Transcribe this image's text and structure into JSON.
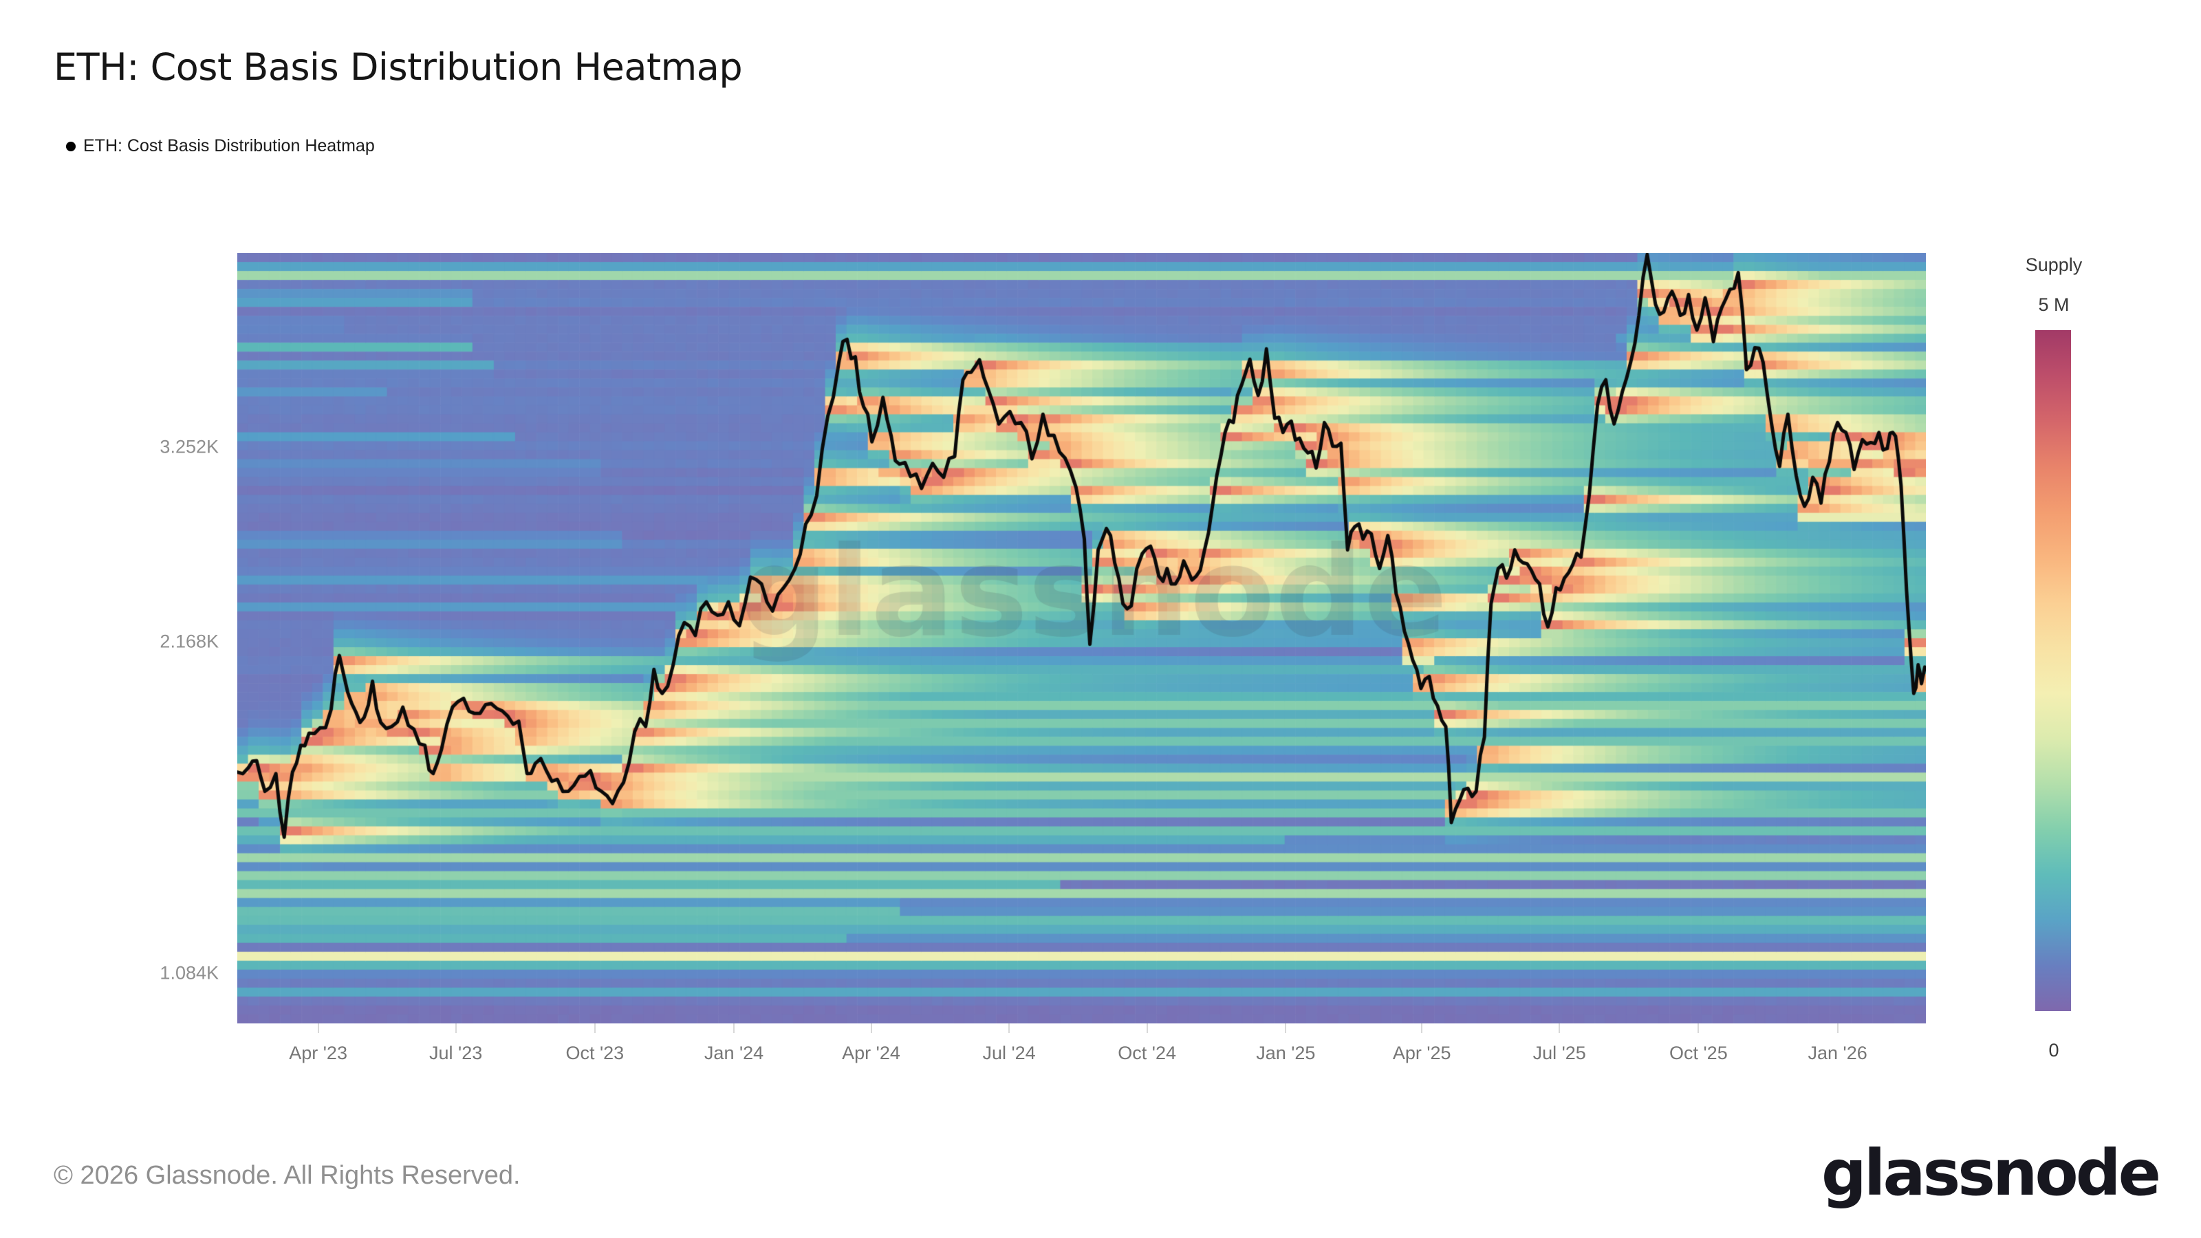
{
  "page": {
    "title": "ETH: Cost Basis Distribution Heatmap",
    "footer": "© 2026 Glassnode. All Rights Reserved.",
    "brand": "glassnode",
    "watermark": "glassnode"
  },
  "legend": {
    "marker": "black-dot",
    "label": "ETH: Cost Basis Distribution Heatmap"
  },
  "chart_data": {
    "type": "heatmap",
    "title": "ETH: Cost Basis Distribution Heatmap",
    "series_name": "ETH: Cost Basis Distribution Heatmap",
    "x_axis": {
      "domain": [
        2023.1,
        2026.16
      ],
      "ticks": [
        {
          "label": "Apr '23",
          "t": 2023.2466
        },
        {
          "label": "Jul '23",
          "t": 2023.4959
        },
        {
          "label": "Oct '23",
          "t": 2023.7479
        },
        {
          "label": "Jan '24",
          "t": 2024.0
        },
        {
          "label": "Apr '24",
          "t": 2024.2486
        },
        {
          "label": "Jul '24",
          "t": 2024.4986
        },
        {
          "label": "Oct '24",
          "t": 2024.7486
        },
        {
          "label": "Jan '25",
          "t": 2025.0
        },
        {
          "label": "Apr '25",
          "t": 2025.2466
        },
        {
          "label": "Jul '25",
          "t": 2025.4959
        },
        {
          "label": "Oct '25",
          "t": 2025.7479
        },
        {
          "label": "Jan '26",
          "t": 2026.0
        }
      ]
    },
    "y_axis": {
      "scale": "log",
      "domain": [
        976,
        4880
      ],
      "unit": "USD",
      "ticks": [
        {
          "label": "3.252K",
          "value": 3252
        },
        {
          "label": "2.168K",
          "value": 2168
        },
        {
          "label": "1.084K",
          "value": 1084
        }
      ]
    },
    "colorbar": {
      "title": "Supply",
      "max_label": "5 M",
      "min_label": "0",
      "stops_top_to_bottom": [
        "#a23a67",
        "#bd4e6a",
        "#d4666a",
        "#e8836a",
        "#f39d70",
        "#f9b57e",
        "#fbcf93",
        "#f8e2a4",
        "#f4efb2",
        "#dcebae",
        "#b3dfab",
        "#83cfad",
        "#5fbcba",
        "#5aa3c6",
        "#687fc0",
        "#7f68ad"
      ]
    },
    "colormap": [
      [
        0.0,
        "#8068ae"
      ],
      [
        0.1,
        "#7278bc"
      ],
      [
        0.2,
        "#6287c7"
      ],
      [
        0.3,
        "#55a0c8"
      ],
      [
        0.4,
        "#5bb7b8"
      ],
      [
        0.48,
        "#7ccaae"
      ],
      [
        0.56,
        "#a5d9ab"
      ],
      [
        0.63,
        "#cfe6ad"
      ],
      [
        0.7,
        "#f0f0b4"
      ],
      [
        0.76,
        "#f9e3a6"
      ],
      [
        0.82,
        "#fbcd90"
      ],
      [
        0.87,
        "#f8b17a"
      ],
      [
        0.91,
        "#f2996e"
      ],
      [
        0.95,
        "#e47a6b"
      ],
      [
        0.98,
        "#d85a71"
      ],
      [
        1.0,
        "#b04369"
      ]
    ],
    "heatmap": {
      "cols": 158,
      "rows": 86,
      "glow": {
        "amp": 0.95,
        "sigma": 1.15,
        "halo_amp": 0.45,
        "halo_sigma": 3.6,
        "floor": 0.3,
        "tau": 20
      },
      "background": {
        "base": 0.075,
        "row_variation": 0.085,
        "col_jitter": 0.022
      },
      "bands": [
        [
          4730,
          0.66,
          0.55,
          null,
          null
        ],
        [
          1930,
          0.68,
          0.55,
          2023.27,
          null
        ],
        [
          1855,
          0.52,
          0.8,
          2023.25,
          null
        ],
        [
          1790,
          0.6,
          0.55,
          2023.3,
          null
        ],
        [
          1640,
          0.62,
          0.7,
          null,
          null
        ],
        [
          1540,
          0.55,
          0.6,
          null,
          null
        ],
        [
          1470,
          0.45,
          0.6,
          null,
          null
        ],
        [
          1400,
          0.64,
          0.5,
          null,
          null
        ],
        [
          1350,
          0.68,
          0.45,
          null,
          null
        ],
        [
          1285,
          0.7,
          0.45,
          null,
          null
        ],
        [
          1230,
          0.55,
          0.5,
          null,
          null
        ],
        [
          1190,
          0.5,
          0.5,
          null,
          null
        ],
        [
          1135,
          0.7,
          0.5,
          null,
          null
        ],
        [
          1105,
          0.55,
          0.45,
          null,
          null
        ],
        [
          1055,
          0.35,
          0.5,
          null,
          null
        ],
        [
          2050,
          0.42,
          0.7,
          2023.9,
          null
        ],
        [
          2250,
          0.35,
          0.8,
          2023.95,
          null
        ],
        [
          2480,
          0.38,
          0.7,
          2024.05,
          null
        ],
        [
          2600,
          0.3,
          0.8,
          2024.6,
          null
        ],
        [
          2850,
          0.34,
          0.8,
          2024.66,
          null
        ],
        [
          3050,
          0.4,
          0.9,
          2024.3,
          null
        ],
        [
          3250,
          0.38,
          0.8,
          2024.3,
          null
        ],
        [
          3400,
          0.42,
          0.7,
          2024.2,
          null
        ],
        [
          3520,
          0.45,
          0.7,
          2024.22,
          null
        ],
        [
          3650,
          0.3,
          0.8,
          2024.45,
          null
        ],
        [
          3900,
          0.28,
          0.7,
          2024.21,
          null
        ],
        [
          4100,
          0.3,
          0.8,
          2025.6,
          null
        ],
        [
          4300,
          0.34,
          0.7,
          2025.63,
          null
        ],
        [
          4480,
          0.38,
          0.7,
          2025.65,
          null
        ],
        [
          4600,
          0.4,
          0.6,
          2025.66,
          null
        ],
        [
          4480,
          0.4,
          0.6,
          null,
          2023.52
        ],
        [
          4240,
          0.3,
          0.5,
          null,
          2023.3
        ],
        [
          4060,
          0.42,
          0.6,
          null,
          2023.52
        ],
        [
          3880,
          0.36,
          0.6,
          null,
          2023.56
        ],
        [
          3700,
          0.28,
          0.6,
          null,
          2023.38
        ],
        [
          3350,
          0.3,
          0.7,
          null,
          2023.6
        ],
        [
          3150,
          0.26,
          0.7,
          null,
          2023.75
        ],
        [
          2700,
          0.28,
          0.8,
          null,
          2023.8
        ],
        [
          2500,
          0.3,
          0.7,
          null,
          2023.95
        ],
        [
          2350,
          0.28,
          0.7,
          null,
          2024.0
        ],
        [
          1250,
          0.45,
          0.8,
          null,
          2024.3
        ],
        [
          1320,
          0.42,
          0.7,
          null,
          2024.6
        ],
        [
          1180,
          0.4,
          0.7,
          null,
          2024.2
        ],
        [
          1460,
          0.45,
          0.8,
          null,
          2025.0
        ],
        [
          1590,
          0.5,
          0.8,
          null,
          2025.3
        ],
        [
          2855,
          0.975,
          0.42,
          2025.92,
          null
        ],
        [
          3180,
          0.9,
          0.5,
          2025.945,
          null
        ],
        [
          3180,
          0.96,
          0.45,
          2026.1,
          null
        ],
        [
          1870,
          0.86,
          0.6,
          2023.28,
          2023.4
        ],
        [
          1700,
          0.8,
          0.5,
          2023.2,
          2023.27
        ],
        [
          1790,
          0.84,
          0.5,
          2023.42,
          2023.6
        ],
        [
          3120,
          0.88,
          0.5,
          2024.26,
          2024.34
        ],
        [
          3020,
          0.84,
          0.5,
          2024.35,
          2024.44
        ],
        [
          2680,
          0.86,
          0.5,
          2025.11,
          2025.17
        ],
        [
          2090,
          0.82,
          0.5,
          2025.21,
          2025.26
        ],
        [
          3550,
          0.78,
          0.6,
          2024.42,
          2024.52
        ],
        [
          2450,
          0.78,
          0.5,
          2024.72,
          2024.85
        ],
        [
          3930,
          0.72,
          0.5,
          2024.95,
          2025.02
        ]
      ]
    },
    "price_line": {
      "color": "#0a0a0a",
      "width": 5,
      "points": [
        [
          2023.1,
          1650
        ],
        [
          2023.12,
          1665
        ],
        [
          2023.135,
          1690
        ],
        [
          2023.15,
          1585
        ],
        [
          2023.17,
          1645
        ],
        [
          2023.185,
          1440
        ],
        [
          2023.2,
          1650
        ],
        [
          2023.215,
          1745
        ],
        [
          2023.23,
          1790
        ],
        [
          2023.25,
          1810
        ],
        [
          2023.27,
          1880
        ],
        [
          2023.285,
          2105
        ],
        [
          2023.3,
          1950
        ],
        [
          2023.315,
          1870
        ],
        [
          2023.33,
          1850
        ],
        [
          2023.345,
          1995
        ],
        [
          2023.36,
          1830
        ],
        [
          2023.38,
          1815
        ],
        [
          2023.4,
          1890
        ],
        [
          2023.42,
          1805
        ],
        [
          2023.44,
          1745
        ],
        [
          2023.455,
          1645
        ],
        [
          2023.47,
          1730
        ],
        [
          2023.49,
          1890
        ],
        [
          2023.51,
          1925
        ],
        [
          2023.53,
          1865
        ],
        [
          2023.55,
          1900
        ],
        [
          2023.57,
          1885
        ],
        [
          2023.59,
          1855
        ],
        [
          2023.61,
          1835
        ],
        [
          2023.625,
          1645
        ],
        [
          2023.64,
          1680
        ],
        [
          2023.66,
          1655
        ],
        [
          2023.68,
          1625
        ],
        [
          2023.7,
          1585
        ],
        [
          2023.72,
          1635
        ],
        [
          2023.74,
          1655
        ],
        [
          2023.76,
          1585
        ],
        [
          2023.78,
          1545
        ],
        [
          2023.8,
          1615
        ],
        [
          2023.82,
          1795
        ],
        [
          2023.84,
          1815
        ],
        [
          2023.855,
          2045
        ],
        [
          2023.87,
          1945
        ],
        [
          2023.89,
          2065
        ],
        [
          2023.91,
          2255
        ],
        [
          2023.93,
          2195
        ],
        [
          2023.95,
          2355
        ],
        [
          2023.97,
          2290
        ],
        [
          2023.99,
          2355
        ],
        [
          2024.01,
          2240
        ],
        [
          2024.03,
          2480
        ],
        [
          2024.05,
          2445
        ],
        [
          2024.07,
          2310
        ],
        [
          2024.09,
          2425
        ],
        [
          2024.11,
          2520
        ],
        [
          2024.13,
          2770
        ],
        [
          2024.15,
          2940
        ],
        [
          2024.17,
          3470
        ],
        [
          2024.19,
          3880
        ],
        [
          2024.205,
          4075
        ],
        [
          2024.22,
          3930
        ],
        [
          2024.235,
          3540
        ],
        [
          2024.25,
          3290
        ],
        [
          2024.27,
          3610
        ],
        [
          2024.285,
          3330
        ],
        [
          2024.3,
          3140
        ],
        [
          2024.32,
          3060
        ],
        [
          2024.34,
          2985
        ],
        [
          2024.36,
          3145
        ],
        [
          2024.38,
          3055
        ],
        [
          2024.4,
          3190
        ],
        [
          2024.415,
          3745
        ],
        [
          2024.43,
          3805
        ],
        [
          2024.445,
          3905
        ],
        [
          2024.46,
          3680
        ],
        [
          2024.48,
          3415
        ],
        [
          2024.5,
          3505
        ],
        [
          2024.52,
          3425
        ],
        [
          2024.54,
          3175
        ],
        [
          2024.56,
          3485
        ],
        [
          2024.58,
          3335
        ],
        [
          2024.6,
          3180
        ],
        [
          2024.62,
          2990
        ],
        [
          2024.635,
          2685
        ],
        [
          2024.645,
          2155
        ],
        [
          2024.66,
          2625
        ],
        [
          2024.675,
          2745
        ],
        [
          2024.69,
          2555
        ],
        [
          2024.705,
          2345
        ],
        [
          2024.72,
          2335
        ],
        [
          2024.74,
          2605
        ],
        [
          2024.755,
          2645
        ],
        [
          2024.77,
          2485
        ],
        [
          2024.785,
          2525
        ],
        [
          2024.8,
          2445
        ],
        [
          2024.815,
          2565
        ],
        [
          2024.83,
          2465
        ],
        [
          2024.845,
          2515
        ],
        [
          2024.86,
          2720
        ],
        [
          2024.875,
          3065
        ],
        [
          2024.89,
          3355
        ],
        [
          2024.905,
          3425
        ],
        [
          2024.92,
          3705
        ],
        [
          2024.935,
          3910
        ],
        [
          2024.95,
          3625
        ],
        [
          2024.965,
          3995
        ],
        [
          2024.98,
          3455
        ],
        [
          2024.995,
          3355
        ],
        [
          2025.01,
          3435
        ],
        [
          2025.025,
          3315
        ],
        [
          2025.04,
          3215
        ],
        [
          2025.055,
          3115
        ],
        [
          2025.07,
          3425
        ],
        [
          2025.085,
          3260
        ],
        [
          2025.1,
          3280
        ],
        [
          2025.112,
          2625
        ],
        [
          2025.125,
          2755
        ],
        [
          2025.14,
          2685
        ],
        [
          2025.155,
          2715
        ],
        [
          2025.17,
          2525
        ],
        [
          2025.185,
          2705
        ],
        [
          2025.2,
          2395
        ],
        [
          2025.215,
          2215
        ],
        [
          2025.23,
          2085
        ],
        [
          2025.245,
          1965
        ],
        [
          2025.26,
          2015
        ],
        [
          2025.275,
          1895
        ],
        [
          2025.29,
          1815
        ],
        [
          2025.3,
          1485
        ],
        [
          2025.315,
          1555
        ],
        [
          2025.33,
          1595
        ],
        [
          2025.345,
          1585
        ],
        [
          2025.36,
          1775
        ],
        [
          2025.372,
          2345
        ],
        [
          2025.385,
          2525
        ],
        [
          2025.4,
          2475
        ],
        [
          2025.415,
          2625
        ],
        [
          2025.43,
          2555
        ],
        [
          2025.445,
          2515
        ],
        [
          2025.46,
          2445
        ],
        [
          2025.475,
          2235
        ],
        [
          2025.49,
          2425
        ],
        [
          2025.505,
          2475
        ],
        [
          2025.52,
          2545
        ],
        [
          2025.535,
          2585
        ],
        [
          2025.55,
          2945
        ],
        [
          2025.565,
          3555
        ],
        [
          2025.58,
          3745
        ],
        [
          2025.595,
          3415
        ],
        [
          2025.61,
          3655
        ],
        [
          2025.625,
          3885
        ],
        [
          2025.64,
          4285
        ],
        [
          2025.655,
          4865
        ],
        [
          2025.67,
          4385
        ],
        [
          2025.685,
          4315
        ],
        [
          2025.7,
          4505
        ],
        [
          2025.715,
          4285
        ],
        [
          2025.73,
          4475
        ],
        [
          2025.745,
          4155
        ],
        [
          2025.76,
          4445
        ],
        [
          2025.775,
          4055
        ],
        [
          2025.79,
          4355
        ],
        [
          2025.805,
          4525
        ],
        [
          2025.82,
          4685
        ],
        [
          2025.835,
          3825
        ],
        [
          2025.85,
          4005
        ],
        [
          2025.865,
          3885
        ],
        [
          2025.88,
          3425
        ],
        [
          2025.895,
          3125
        ],
        [
          2025.91,
          3485
        ],
        [
          2025.925,
          3065
        ],
        [
          2025.94,
          2875
        ],
        [
          2025.955,
          3055
        ],
        [
          2025.97,
          2895
        ],
        [
          2025.985,
          3155
        ],
        [
          2026.0,
          3425
        ],
        [
          2026.015,
          3355
        ],
        [
          2026.03,
          3105
        ],
        [
          2026.045,
          3305
        ],
        [
          2026.06,
          3285
        ],
        [
          2026.075,
          3355
        ],
        [
          2026.09,
          3245
        ],
        [
          2026.1,
          3355
        ],
        [
          2026.11,
          3185
        ],
        [
          2026.12,
          2705
        ],
        [
          2026.13,
          2205
        ],
        [
          2026.138,
          1945
        ],
        [
          2026.146,
          2065
        ],
        [
          2026.152,
          1985
        ],
        [
          2026.158,
          2055
        ]
      ]
    }
  }
}
